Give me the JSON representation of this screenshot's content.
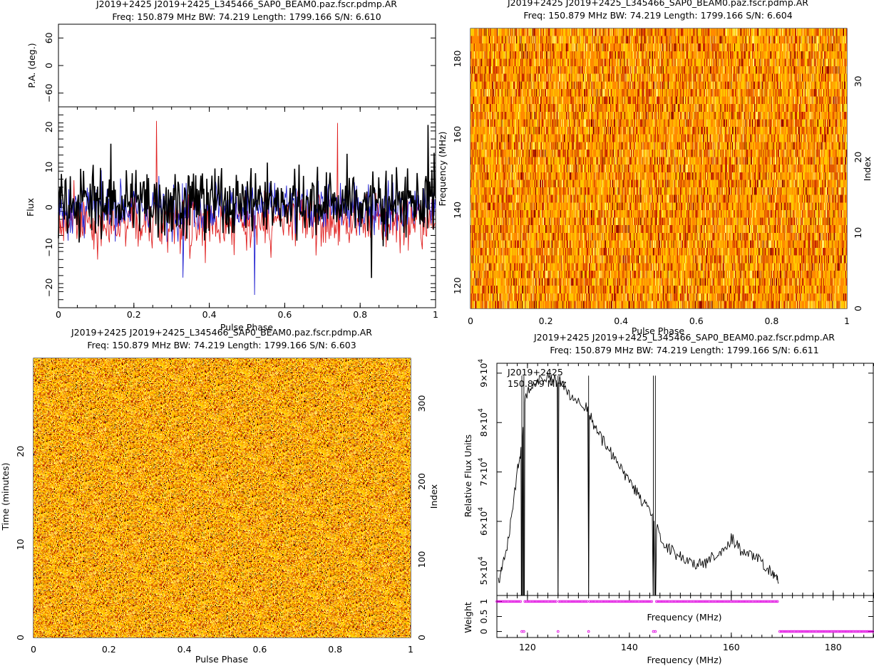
{
  "chart_data": [
    {
      "id": "profile",
      "type": "line",
      "title": "J2019+2425  J2019+2425_L345466_SAP0_BEAM0.paz.fscr.pdmp.AR",
      "subtitle": "Freq: 150.879 MHz BW: 74.219 Length: 1799.166 S/N: 6.610",
      "pa_panel": {
        "ylabel": "P.A. (deg.)",
        "ylim": [
          -90,
          90
        ],
        "yticks": [
          "60",
          "0",
          "−60"
        ],
        "ytick_values": [
          60,
          0,
          -60
        ]
      },
      "xlabel": "Pulse Phase",
      "ylabel": "Flux",
      "xlim": [
        0,
        1
      ],
      "ylim": [
        -25,
        25
      ],
      "xticks": [
        "0",
        "0.2",
        "0.4",
        "0.6",
        "0.8",
        "1"
      ],
      "xtick_values": [
        0,
        0.2,
        0.4,
        0.6,
        0.8,
        1
      ],
      "yticks": [
        "−20",
        "−10",
        "0",
        "10",
        "20"
      ],
      "ytick_values": [
        -20,
        -10,
        0,
        10,
        20
      ],
      "n_bins": 512,
      "series": [
        {
          "color": "#e02020",
          "role": "linear polarisation",
          "mean": -3.5,
          "spread": 5.5
        },
        {
          "color": "#1f1fd0",
          "role": "circular polarisation",
          "mean": 0,
          "spread": 5.0
        },
        {
          "color": "#000000",
          "role": "total intensity",
          "mean": 1.5,
          "spread": 7.0
        }
      ],
      "notable_points": [
        {
          "x": 0.26,
          "y": 21.5,
          "series": 0
        },
        {
          "x": 0.74,
          "y": 21.0,
          "series": 0
        },
        {
          "x": 0.52,
          "y": -21.8,
          "series": 1
        },
        {
          "x": 0.33,
          "y": -17.5,
          "series": 1
        },
        {
          "x": 0.83,
          "y": -17.6,
          "series": 2
        },
        {
          "x": 0.98,
          "y": 20.5,
          "series": 2
        }
      ]
    },
    {
      "id": "freq-phase",
      "type": "heatmap",
      "title": "J2019+2425  J2019+2425_L345466_SAP0_BEAM0.paz.fscr.pdmp.AR",
      "subtitle": "Freq: 150.879 MHz BW: 74.219 Length: 1799.166 S/N: 6.604",
      "xlabel": "Pulse Phase",
      "ylabel": "Frequency (MHz)",
      "y2label": "Index",
      "xlim": [
        0,
        1
      ],
      "ylim": [
        114.0,
        188.0
      ],
      "y2lim": [
        0,
        37
      ],
      "xticks": [
        "0",
        "0.2",
        "0.4",
        "0.6",
        "0.8",
        "1"
      ],
      "xtick_values": [
        0,
        0.2,
        0.4,
        0.6,
        0.8,
        1
      ],
      "yticks": [
        "120",
        "140",
        "160",
        "180"
      ],
      "ytick_values": [
        120,
        140,
        160,
        180
      ],
      "y2ticks": [
        "0",
        "10",
        "20",
        "30"
      ],
      "y2tick_values": [
        0,
        10,
        20,
        30
      ],
      "n_channels": 37,
      "n_bins": 512,
      "colormap": [
        "#7a0000",
        "#c62800",
        "#ff8a00",
        "#ffc800",
        "#fff070"
      ]
    },
    {
      "id": "time-phase",
      "type": "heatmap",
      "title": "J2019+2425  J2019+2425_L345466_SAP0_BEAM0.paz.fscr.pdmp.AR",
      "subtitle": "Freq: 150.879 MHz BW: 74.219 Length: 1799.166 S/N: 6.603",
      "xlabel": "Pulse Phase",
      "ylabel": "Time (minutes)",
      "y2label": "Index",
      "xlim": [
        0,
        1
      ],
      "ylim": [
        0,
        30.0
      ],
      "y2lim": [
        0,
        358
      ],
      "xticks": [
        "0",
        "0.2",
        "0.4",
        "0.6",
        "0.8",
        "1"
      ],
      "xtick_values": [
        0,
        0.2,
        0.4,
        0.6,
        0.8,
        1
      ],
      "yticks": [
        "0",
        "10",
        "20"
      ],
      "ytick_values": [
        0,
        10,
        20
      ],
      "y2ticks": [
        "0",
        "100",
        "200",
        "300"
      ],
      "y2tick_values": [
        0,
        100,
        200,
        300
      ],
      "n_subints": 358,
      "n_bins": 512,
      "colormap": [
        "#000000",
        "#b02000",
        "#ff9a00",
        "#ffd000",
        "#fff080"
      ]
    },
    {
      "id": "bandpass",
      "type": "line",
      "title": "J2019+2425  J2019+2425_L345466_SAP0_BEAM0.paz.fscr.pdmp.AR",
      "subtitle": "Freq: 150.879 MHz BW: 74.219 Length: 1799.166 S/N: 6.611",
      "annotation_lines": [
        "J2019+2425",
        "150.879 MHz"
      ],
      "xlabel": "Frequency (MHz)",
      "ylabel": "Relative Flux Units",
      "xlim": [
        114.0,
        188.0
      ],
      "ylim": [
        45000,
        92000
      ],
      "xticks": [
        "120",
        "140",
        "160",
        "180"
      ],
      "xtick_values": [
        120,
        140,
        160,
        180
      ],
      "yticks": [
        "5×10",
        "6×10",
        "7×10",
        "8×10",
        "9×10"
      ],
      "ytick_exp": "4",
      "ytick_values": [
        50000,
        60000,
        70000,
        80000,
        90000
      ],
      "series_color": "#000000",
      "spectrum": [
        [
          114.3,
          47500
        ],
        [
          115.0,
          51000
        ],
        [
          116.0,
          55000
        ],
        [
          117.0,
          62000
        ],
        [
          118.0,
          70000
        ],
        [
          118.6,
          73000
        ],
        [
          119.0,
          76000
        ],
        [
          119.4,
          84000
        ],
        [
          120.0,
          86000
        ],
        [
          121.0,
          88000
        ],
        [
          122.0,
          88500
        ],
        [
          123.0,
          89000
        ],
        [
          124.0,
          89200
        ],
        [
          125.0,
          88500
        ],
        [
          126.0,
          88800
        ],
        [
          127.0,
          87500
        ],
        [
          128.0,
          86000
        ],
        [
          129.0,
          85000
        ],
        [
          130.0,
          84500
        ],
        [
          131.0,
          83500
        ],
        [
          132.0,
          82500
        ],
        [
          133.0,
          79500
        ],
        [
          134.0,
          77500
        ],
        [
          135.0,
          76000
        ],
        [
          136.0,
          74500
        ],
        [
          137.0,
          73000
        ],
        [
          138.0,
          71000
        ],
        [
          139.0,
          69500
        ],
        [
          140.0,
          68000
        ],
        [
          141.0,
          66500
        ],
        [
          142.0,
          65000
        ],
        [
          143.0,
          63500
        ],
        [
          144.0,
          61500
        ],
        [
          145.0,
          59500
        ],
        [
          146.0,
          57000
        ],
        [
          147.0,
          55500
        ],
        [
          148.0,
          54200
        ],
        [
          149.0,
          53500
        ],
        [
          150.0,
          52800
        ],
        [
          151.0,
          52300
        ],
        [
          152.0,
          51800
        ],
        [
          153.0,
          51500
        ],
        [
          154.0,
          51400
        ],
        [
          155.0,
          51700
        ],
        [
          156.0,
          52500
        ],
        [
          157.0,
          53500
        ],
        [
          158.0,
          54200
        ],
        [
          159.0,
          55000
        ],
        [
          160.0,
          56500
        ],
        [
          161.0,
          55500
        ],
        [
          162.0,
          54000
        ],
        [
          163.0,
          53500
        ],
        [
          164.0,
          53000
        ],
        [
          165.0,
          52500
        ],
        [
          166.0,
          51500
        ],
        [
          167.0,
          50500
        ],
        [
          168.0,
          49500
        ],
        [
          168.8,
          48500
        ],
        [
          169.3,
          47500
        ]
      ],
      "zapped_channels_mhz": [
        118.9,
        119.3,
        126.0,
        132.0,
        144.7,
        145.1
      ],
      "weight_panel": {
        "ylabel": "Weight",
        "ylim": [
          -0.2,
          1.2
        ],
        "yticks": [
          "0",
          "0.5",
          "1"
        ],
        "ytick_values": [
          0,
          0.5,
          1
        ],
        "inner_xlabel": "Frequency (MHz)",
        "marker_color": "#e000e0",
        "one_ranges": [
          [
            114.0,
            118.7
          ],
          [
            119.5,
            125.8
          ],
          [
            126.2,
            131.8
          ],
          [
            132.2,
            144.5
          ],
          [
            145.3,
            169.3
          ]
        ],
        "zero_ranges": [
          [
            169.5,
            188.0
          ]
        ]
      }
    }
  ]
}
